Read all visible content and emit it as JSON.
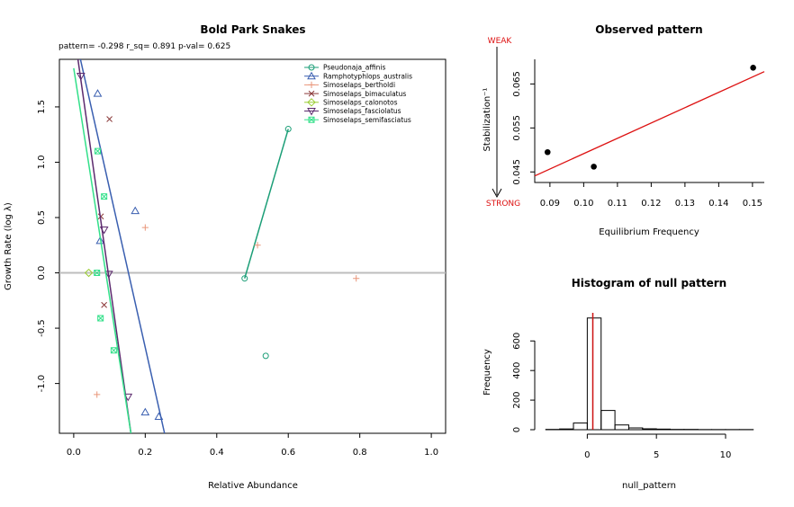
{
  "chart_data": [
    {
      "type": "scatter",
      "title": "Bold Park Snakes",
      "subtitle": "pattern= -0.298 r_sq= 0.891 p-val= 0.625",
      "xlabel": "Relative Abundance",
      "ylabel": "Growth Rate (log  λ)",
      "xlim": [
        -0.04,
        1.04
      ],
      "ylim": [
        -1.45,
        1.93
      ],
      "xticks": [
        "0.0",
        "0.2",
        "0.4",
        "0.6",
        "0.8",
        "1.0"
      ],
      "xtick_values": [
        0,
        0.2,
        0.4,
        0.6,
        0.8,
        1.0
      ],
      "yticks": [
        "-1.0",
        "-0.5",
        "0.0",
        "0.5",
        "1.0",
        "1.5"
      ],
      "ytick_values": [
        -1.0,
        -0.5,
        0.0,
        0.5,
        1.0,
        1.5
      ],
      "hline": 0,
      "legend_position": "top-right",
      "series": [
        {
          "name": "Pseudonaja_affinis",
          "color": "#1b9e77",
          "marker": "circle",
          "points": [
            [
              0.6,
              1.3
            ],
            [
              0.478,
              -0.05
            ],
            [
              0.537,
              -0.75
            ]
          ],
          "line": [
            [
              0.6,
              1.3
            ],
            [
              0.478,
              -0.05
            ]
          ]
        },
        {
          "name": "Ramphotyphlops_australis",
          "color": "#3a5fb0",
          "marker": "triangle-up",
          "points": [
            [
              0.067,
              1.62
            ],
            [
              0.172,
              0.56
            ],
            [
              0.074,
              0.29
            ],
            [
              0.2,
              -1.26
            ],
            [
              0.238,
              -1.3
            ]
          ],
          "line": [
            [
              0.0,
              2.2
            ],
            [
              0.254,
              -1.45
            ]
          ]
        },
        {
          "name": "Simoselaps_bertholdi",
          "color": "#e9967a",
          "marker": "plus",
          "points": [
            [
              0.2,
              0.41
            ],
            [
              0.514,
              0.25
            ],
            [
              0.79,
              -0.05
            ],
            [
              0.065,
              -1.1
            ]
          ],
          "line": null
        },
        {
          "name": "Simoselaps_bimaculatus",
          "color": "#8b3a3a",
          "marker": "x",
          "points": [
            [
              0.1,
              1.39
            ],
            [
              0.076,
              0.51
            ],
            [
              0.085,
              -0.29
            ]
          ],
          "line": null
        },
        {
          "name": "Simoselaps_calonotos",
          "color": "#9acd32",
          "marker": "diamond",
          "points": [
            [
              0.042,
              0.0
            ]
          ],
          "line": null
        },
        {
          "name": "Simoselaps_fasciolatus",
          "color": "#5c2a6e",
          "marker": "triangle-down",
          "points": [
            [
              0.02,
              1.78
            ],
            [
              0.085,
              0.39
            ],
            [
              0.098,
              -0.01
            ],
            [
              0.152,
              -1.12
            ]
          ],
          "line": [
            [
              0.0,
              2.2
            ],
            [
              0.16,
              -1.45
            ]
          ]
        },
        {
          "name": "Simoselaps_semifasciatus",
          "color": "#33e08a",
          "marker": "square-x",
          "points": [
            [
              0.067,
              1.1
            ],
            [
              0.085,
              0.69
            ],
            [
              0.065,
              0.0
            ],
            [
              0.075,
              -0.41
            ],
            [
              0.112,
              -0.7
            ]
          ],
          "line": [
            [
              0.0,
              1.85
            ],
            [
              0.16,
              -1.45
            ]
          ]
        }
      ]
    },
    {
      "type": "scatter",
      "title": "Observed pattern",
      "xlabel": "Equilibrium Frequency",
      "ylabel": "Stabilization⁻¹",
      "xlim": [
        0.0855,
        0.1535
      ],
      "ylim": [
        0.0426,
        0.0706
      ],
      "xticks": [
        "0.09",
        "0.10",
        "0.11",
        "0.12",
        "0.13",
        "0.14",
        "0.15"
      ],
      "xtick_values": [
        0.09,
        0.1,
        0.11,
        0.12,
        0.13,
        0.14,
        0.15
      ],
      "yticks": [
        "0.045",
        "0.055",
        "0.065"
      ],
      "ytick_values": [
        0.045,
        0.055,
        0.065
      ],
      "weak_label": "WEAK",
      "strong_label": "STRONG",
      "points": [
        [
          0.0893,
          0.0495
        ],
        [
          0.103,
          0.0462
        ],
        [
          0.1502,
          0.0687
        ]
      ],
      "fit_line": {
        "color": "#dd1111",
        "from": [
          0.0855,
          0.0441
        ],
        "to": [
          0.1535,
          0.0678
        ]
      }
    },
    {
      "type": "bar",
      "title": "Histogram of null pattern",
      "xlabel": "null_pattern",
      "ylabel": "Frequency",
      "xlim": [
        -3.8,
        12.8
      ],
      "ylim": [
        0,
        790
      ],
      "xticks": [
        "0",
        "5",
        "10"
      ],
      "xtick_values": [
        0,
        5,
        10
      ],
      "yticks": [
        "0",
        "200",
        "400",
        "600"
      ],
      "ytick_values": [
        0,
        200,
        400,
        600
      ],
      "bin_width": 1,
      "bins": [
        {
          "start": -3,
          "count": 2
        },
        {
          "start": -2,
          "count": 5
        },
        {
          "start": -1,
          "count": 45
        },
        {
          "start": 0,
          "count": 755
        },
        {
          "start": 1,
          "count": 130
        },
        {
          "start": 2,
          "count": 32
        },
        {
          "start": 3,
          "count": 12
        },
        {
          "start": 4,
          "count": 6
        },
        {
          "start": 5,
          "count": 4
        },
        {
          "start": 6,
          "count": 2
        },
        {
          "start": 7,
          "count": 2
        },
        {
          "start": 8,
          "count": 1
        },
        {
          "start": 9,
          "count": 1
        },
        {
          "start": 10,
          "count": 1
        },
        {
          "start": 11,
          "count": 1
        }
      ],
      "observed_value": 0.4,
      "observed_color": "#cc1111"
    }
  ]
}
